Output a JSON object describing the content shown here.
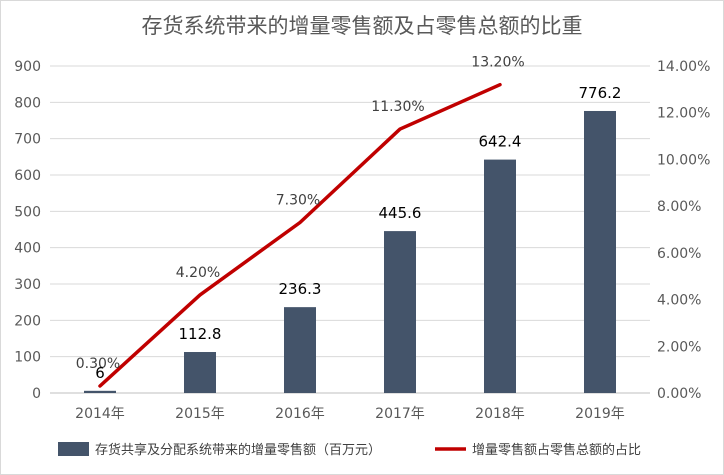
{
  "chart_data": {
    "type": "bar+line",
    "title": "存货系统带来的增量零售额及占零售总额的比重",
    "categories": [
      "2014年",
      "2015年",
      "2016年",
      "2017年",
      "2018年",
      "2019年"
    ],
    "series": [
      {
        "name": "存货共享及分配系统带来的增量零售额（百万元）",
        "type": "bar",
        "axis": "left",
        "values": [
          6,
          112.8,
          236.3,
          445.6,
          642.4,
          776.2
        ],
        "labels": [
          "6",
          "112.8",
          "236.3",
          "445.6",
          "642.4",
          "776.2"
        ],
        "color": "#44546a"
      },
      {
        "name": "增量零售额占零售总额的占比",
        "type": "line",
        "axis": "right",
        "values": [
          0.3,
          4.2,
          7.3,
          11.3,
          13.2,
          null
        ],
        "labels": [
          "0.30%",
          "4.20%",
          "7.30%",
          "11.30%",
          "13.20%",
          null
        ],
        "color": "#c00000"
      }
    ],
    "y_left": {
      "ylim": [
        0,
        900
      ],
      "ticks": [
        "0",
        "100",
        "200",
        "300",
        "400",
        "500",
        "600",
        "700",
        "800",
        "900"
      ]
    },
    "y_right": {
      "ylim": [
        0,
        14
      ],
      "ticks": [
        "0.00%",
        "2.00%",
        "4.00%",
        "6.00%",
        "8.00%",
        "10.00%",
        "12.00%",
        "14.00%"
      ]
    },
    "grid": true,
    "legend_position": "bottom"
  }
}
